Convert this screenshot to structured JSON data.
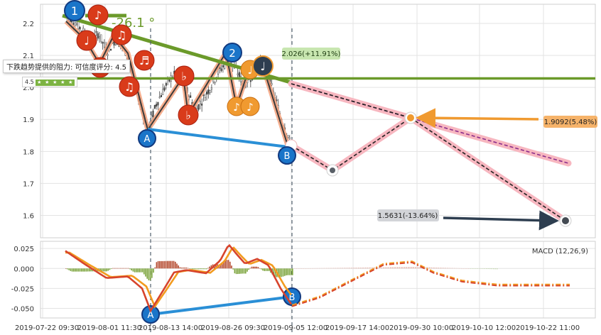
{
  "chart_data": [
    {
      "type": "candlestick",
      "title": "",
      "x_tick_labels": [
        "2019-07-22 09:30",
        "2019-08-01 11:30",
        "2019-08-13 14:00",
        "2019-08-26 09:30",
        "2019-09-05 12:00",
        "2019-09-17 14:00",
        "2019-09-30 10:00",
        "2019-10-10 12:00",
        "2019-10-22 11:00"
      ],
      "y_ticks": [
        1.6,
        1.7,
        1.8,
        1.9,
        2.0,
        2.1,
        2.2
      ],
      "ylim": [
        1.53,
        2.26
      ],
      "grid": true,
      "price_path": [
        {
          "t": 0,
          "v": 2.23
        },
        {
          "t": 4,
          "v": 2.21
        },
        {
          "t": 8,
          "v": 2.18
        },
        {
          "t": 12,
          "v": 2.14
        },
        {
          "t": 16,
          "v": 2.17
        },
        {
          "t": 20,
          "v": 2.11
        },
        {
          "t": 24,
          "v": 2.15
        },
        {
          "t": 28,
          "v": 2.13
        },
        {
          "t": 32,
          "v": 2.06
        },
        {
          "t": 36,
          "v": 1.95
        },
        {
          "t": 40,
          "v": 1.87
        },
        {
          "t": 44,
          "v": 1.95
        },
        {
          "t": 48,
          "v": 2.0
        },
        {
          "t": 52,
          "v": 2.04
        },
        {
          "t": 56,
          "v": 2.03
        },
        {
          "t": 60,
          "v": 1.97
        },
        {
          "t": 63,
          "v": 1.93
        },
        {
          "t": 66,
          "v": 1.96
        },
        {
          "t": 70,
          "v": 2.0
        },
        {
          "t": 74,
          "v": 2.05
        },
        {
          "t": 78,
          "v": 2.08
        },
        {
          "t": 82,
          "v": 2.06
        },
        {
          "t": 86,
          "v": 2.01
        },
        {
          "t": 89,
          "v": 2.03
        },
        {
          "t": 92,
          "v": 2.05
        },
        {
          "t": 95,
          "v": 2.08
        },
        {
          "t": 98,
          "v": 2.03
        },
        {
          "t": 101,
          "v": 1.97
        },
        {
          "t": 104,
          "v": 1.91
        },
        {
          "t": 107,
          "v": 1.86
        },
        {
          "t": 109,
          "v": 1.81
        }
      ],
      "annotations": {
        "angle_label": "-26.1 °",
        "resistance_tooltip": "下跌趋势提供的阻力: 可信度评分: 4.5",
        "rating_value": "4.5",
        "rating_stars": 5,
        "resistance_level": 2.028,
        "peak_label": "2.026(+11.91%)",
        "target_1_label": "1.9092(5.48%)",
        "target_1_value": 1.9092,
        "target_2_label": "1.5631(-13.64%)",
        "target_2_value": 1.5631,
        "wave_labels": [
          "1",
          "2",
          "A",
          "B"
        ],
        "note_glyphs": [
          "♪",
          "♫",
          "♩",
          "♬",
          "♭"
        ]
      },
      "colors": {
        "wave_bubble": "#1a75c9",
        "note_red": "#d93b1a",
        "note_orange": "#f09a30",
        "note_dark": "#2e3e50",
        "trend_green": "#6b9a2a",
        "divergence_blue": "#2a8fd6",
        "target_pink": "#f7b7c0"
      }
    },
    {
      "type": "macd",
      "legend": "MACD (12,26,9)",
      "y_ticks": [
        0.025,
        0.0,
        -0.025,
        -0.05
      ],
      "ylim": [
        -0.062,
        0.034
      ],
      "series_colors": {
        "dif": "#d7442c",
        "dea": "#f29b1f",
        "hist_pos": "#b54a2f",
        "hist_neg": "#7aa33a"
      }
    }
  ]
}
